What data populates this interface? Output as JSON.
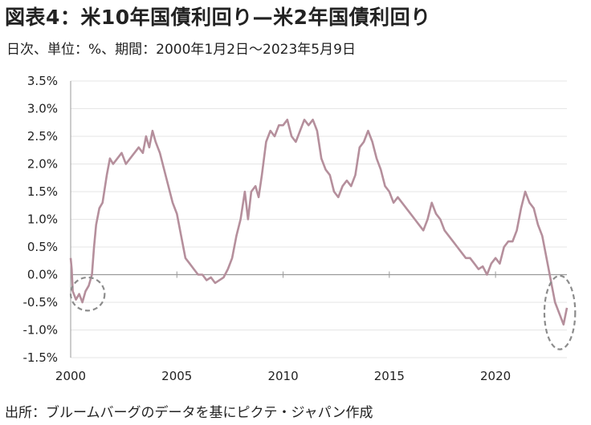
{
  "title": "図表4：米10年国債利回り—米2年国債利回り",
  "subtitle": "日次、単位：%、期間：2000年1月2日～2023年5月9日",
  "source": "出所：ブルームバーグのデータを基にピクテ・ジャパン作成",
  "colors": {
    "line": "#b58f9c",
    "zero_line": "#9a9a9a",
    "grid": "#e6e6e6",
    "highlight_circle": "#8c8c8c"
  },
  "chart_data": {
    "type": "line",
    "title": "米10年国債利回り—米2年国債利回り",
    "xlabel": "",
    "ylabel": "",
    "xlim": [
      2000.0,
      2023.36
    ],
    "ylim": [
      -1.5,
      3.5
    ],
    "grid": true,
    "legend": "none",
    "x_tick_labels": [
      "2000",
      "2005",
      "2010",
      "2015",
      "2020"
    ],
    "y_tick_labels": [
      "3.5%",
      "3.0%",
      "2.5%",
      "2.0%",
      "1.5%",
      "1.0%",
      "0.5%",
      "0.0%",
      "-0.5%",
      "-1.0%",
      "-1.5%"
    ],
    "series": [
      {
        "values_unit": "%",
        "x": [
          2000.0,
          2000.05,
          2000.1,
          2000.25,
          2000.4,
          2000.55,
          2000.7,
          2000.85,
          2001.0,
          2001.1,
          2001.2,
          2001.35,
          2001.5,
          2001.7,
          2001.85,
          2002.0,
          2002.2,
          2002.4,
          2002.6,
          2002.8,
          2003.0,
          2003.2,
          2003.4,
          2003.55,
          2003.7,
          2003.85,
          2004.0,
          2004.2,
          2004.4,
          2004.6,
          2004.8,
          2005.0,
          2005.2,
          2005.4,
          2005.6,
          2005.8,
          2006.0,
          2006.2,
          2006.4,
          2006.6,
          2006.8,
          2007.0,
          2007.2,
          2007.4,
          2007.6,
          2007.8,
          2008.0,
          2008.2,
          2008.35,
          2008.5,
          2008.7,
          2008.85,
          2009.0,
          2009.2,
          2009.4,
          2009.6,
          2009.8,
          2010.0,
          2010.2,
          2010.4,
          2010.6,
          2010.8,
          2011.0,
          2011.2,
          2011.4,
          2011.6,
          2011.8,
          2012.0,
          2012.2,
          2012.4,
          2012.6,
          2012.8,
          2013.0,
          2013.2,
          2013.4,
          2013.6,
          2013.8,
          2014.0,
          2014.2,
          2014.4,
          2014.6,
          2014.8,
          2015.0,
          2015.2,
          2015.4,
          2015.6,
          2015.8,
          2016.0,
          2016.2,
          2016.4,
          2016.6,
          2016.8,
          2017.0,
          2017.2,
          2017.4,
          2017.6,
          2017.8,
          2018.0,
          2018.2,
          2018.4,
          2018.6,
          2018.8,
          2019.0,
          2019.2,
          2019.4,
          2019.6,
          2019.8,
          2020.0,
          2020.2,
          2020.4,
          2020.6,
          2020.8,
          2021.0,
          2021.2,
          2021.4,
          2021.6,
          2021.8,
          2022.0,
          2022.2,
          2022.4,
          2022.6,
          2022.8,
          2023.0,
          2023.2,
          2023.36
        ],
        "y": [
          0.3,
          0.1,
          -0.3,
          -0.45,
          -0.35,
          -0.5,
          -0.3,
          -0.2,
          0.0,
          0.5,
          0.9,
          1.2,
          1.3,
          1.8,
          2.1,
          2.0,
          2.1,
          2.2,
          2.0,
          2.1,
          2.2,
          2.3,
          2.2,
          2.5,
          2.3,
          2.6,
          2.4,
          2.2,
          1.9,
          1.6,
          1.3,
          1.1,
          0.7,
          0.3,
          0.2,
          0.1,
          0.0,
          0.0,
          -0.1,
          -0.05,
          -0.15,
          -0.1,
          -0.05,
          0.1,
          0.3,
          0.7,
          1.0,
          1.5,
          1.0,
          1.5,
          1.6,
          1.4,
          1.8,
          2.4,
          2.6,
          2.5,
          2.7,
          2.7,
          2.8,
          2.5,
          2.4,
          2.6,
          2.8,
          2.7,
          2.8,
          2.6,
          2.1,
          1.9,
          1.8,
          1.5,
          1.4,
          1.6,
          1.7,
          1.6,
          1.8,
          2.3,
          2.4,
          2.6,
          2.4,
          2.1,
          1.9,
          1.6,
          1.5,
          1.3,
          1.4,
          1.3,
          1.2,
          1.1,
          1.0,
          0.9,
          0.8,
          1.0,
          1.3,
          1.1,
          1.0,
          0.8,
          0.7,
          0.6,
          0.5,
          0.4,
          0.3,
          0.3,
          0.2,
          0.1,
          0.15,
          0.0,
          0.2,
          0.3,
          0.2,
          0.5,
          0.6,
          0.6,
          0.8,
          1.2,
          1.5,
          1.3,
          1.2,
          0.9,
          0.7,
          0.3,
          -0.1,
          -0.5,
          -0.7,
          -0.9,
          -0.6
        ]
      }
    ]
  }
}
